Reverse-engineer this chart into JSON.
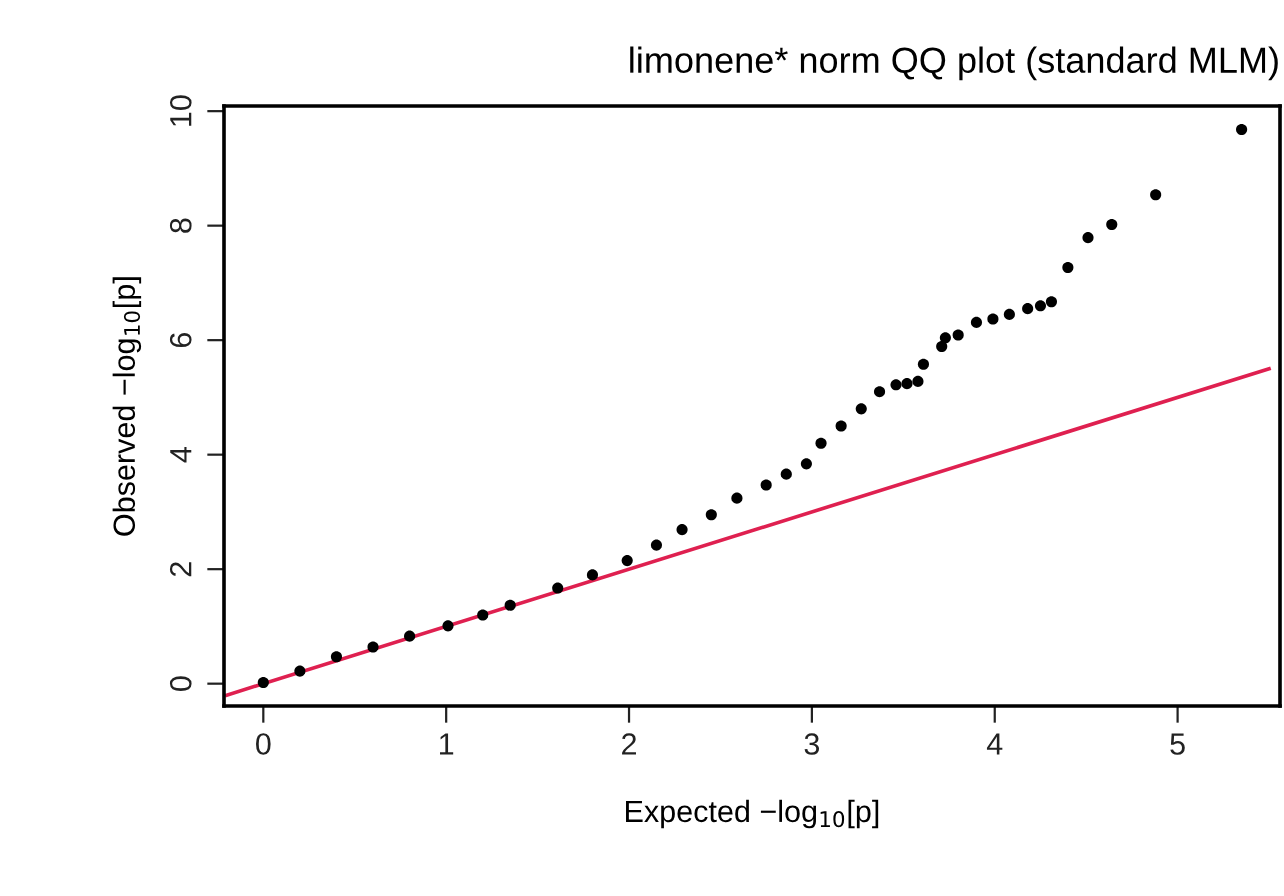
{
  "chart_data": {
    "type": "scatter",
    "title": "limonene* norm QQ plot (standard MLM)",
    "xlabel": "Expected −log$_{10}$[p]",
    "ylabel": "Observed −log$_{10}$[p]",
    "xlim": [
      -0.215,
      5.56
    ],
    "ylim": [
      -0.39,
      10.09
    ],
    "xticks": [
      0,
      1,
      2,
      3,
      4,
      5
    ],
    "yticks": [
      0,
      2,
      4,
      6,
      8,
      10
    ],
    "grid": false,
    "series": [
      {
        "color": "#000000",
        "marker": "circle",
        "x": [
          0.0,
          0.2,
          0.4,
          0.6,
          0.8,
          1.01,
          1.2,
          1.35,
          1.61,
          1.8,
          1.99,
          2.15,
          2.29,
          2.45,
          2.59,
          2.75,
          2.86,
          2.97,
          3.05,
          3.16,
          3.27,
          3.37,
          3.46,
          3.52,
          3.58,
          3.61,
          3.71,
          3.73,
          3.8,
          3.9,
          3.99,
          4.08,
          4.18,
          4.25,
          4.31,
          4.4,
          4.51,
          4.64,
          4.88,
          5.35
        ],
        "values": [
          0.02,
          0.22,
          0.47,
          0.64,
          0.83,
          1.01,
          1.2,
          1.37,
          1.67,
          1.9,
          2.15,
          2.42,
          2.69,
          2.95,
          3.24,
          3.47,
          3.66,
          3.84,
          4.2,
          4.5,
          4.8,
          5.1,
          5.22,
          5.24,
          5.28,
          5.58,
          5.89,
          6.04,
          6.09,
          6.31,
          6.37,
          6.45,
          6.55,
          6.6,
          6.67,
          7.27,
          7.79,
          8.02,
          8.54,
          9.68
        ]
      },
      {
        "type": "line",
        "color": "#df2050",
        "x": [
          -0.2,
          5.5
        ],
        "values": [
          -0.2,
          5.5
        ],
        "line_style": "solid",
        "marker": "none"
      }
    ]
  }
}
